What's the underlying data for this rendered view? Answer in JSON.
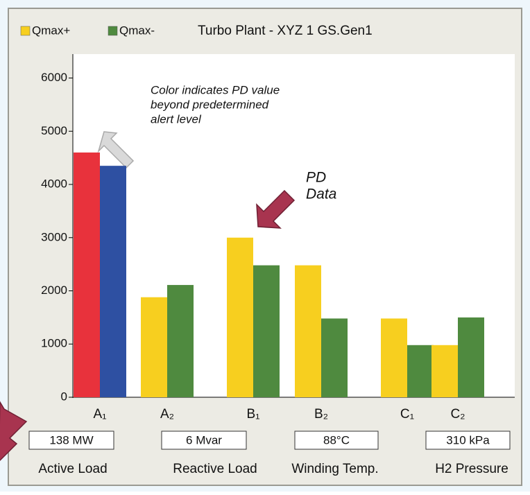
{
  "chart_data": {
    "type": "bar",
    "title": "Turbo Plant - XYZ   1 GS.Gen1",
    "categories": [
      "A₁",
      "A₂",
      "B₁",
      "B₂",
      "C₁",
      "C₂"
    ],
    "series": [
      {
        "name": "Qmax+",
        "color": "#f7cf1f",
        "colors": [
          "#e8323c",
          "#f7cf1f",
          "#f7cf1f",
          "#f7cf1f",
          "#f7cf1f",
          "#f7cf1f"
        ],
        "values": [
          4600,
          1880,
          3000,
          2480,
          1480,
          980
        ]
      },
      {
        "name": "Qmax-",
        "color": "#4f8a3f",
        "colors": [
          "#2e50a2",
          "#4f8a3f",
          "#4f8a3f",
          "#4f8a3f",
          "#4f8a3f",
          "#4f8a3f"
        ],
        "values": [
          4350,
          2110,
          2480,
          1480,
          980,
          1500
        ]
      }
    ],
    "ylim": [
      0,
      6450
    ],
    "yticks": [
      0,
      1000,
      2000,
      3000,
      4000,
      5000,
      6000
    ],
    "annotations": [
      {
        "lines": [
          "Color indicates PD value",
          "beyond predetermined",
          "alert level"
        ]
      },
      {
        "lines": [
          "PD",
          "Data"
        ]
      }
    ],
    "readouts": [
      {
        "value": "138 MW",
        "label": "Active Load"
      },
      {
        "value": "6 Mvar",
        "label": "Reactive Load"
      },
      {
        "value": "88°C",
        "label": "Winding Temp."
      },
      {
        "value": "310 kPa",
        "label": "H2 Pressure"
      }
    ]
  }
}
